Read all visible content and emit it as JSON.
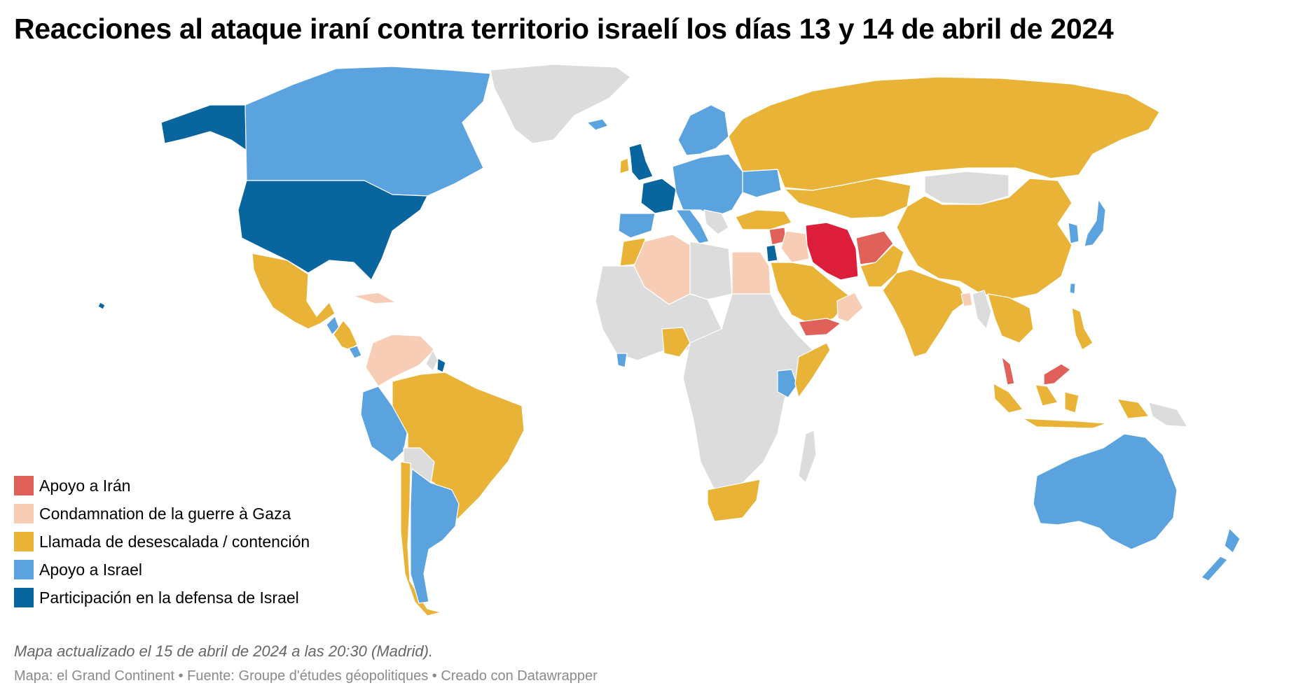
{
  "title": "Reacciones al ataque iraní contra territorio israelí los días 13 y 14 de abril de 2024",
  "legend": [
    {
      "label": "Apoyo a Irán",
      "color": "#e0615a"
    },
    {
      "label": "Condamnation de la guerre à Gaza",
      "color": "#f8cdb6"
    },
    {
      "label": "Llamada de desescalada / contención",
      "color": "#e9b338"
    },
    {
      "label": "Apoyo a Israel",
      "color": "#5ba3de"
    },
    {
      "label": "Participación en la defensa de Israel",
      "color": "#08659d"
    }
  ],
  "colors": {
    "iran": "#dc1e3a",
    "no_data": "#dcdcdc",
    "support_iran": "#e0615a",
    "gaza": "#f8cdb6",
    "deescalation": "#e9b338",
    "support_israel": "#5ba3de",
    "defense_israel": "#08659d"
  },
  "note": "Mapa actualizado el 15 de abril de 2024 a las 20:30 (Madrid).",
  "credits": "Mapa: el Grand Continent • Fuente: Groupe d'études géopolitiques • Creado con Datawrapper"
}
